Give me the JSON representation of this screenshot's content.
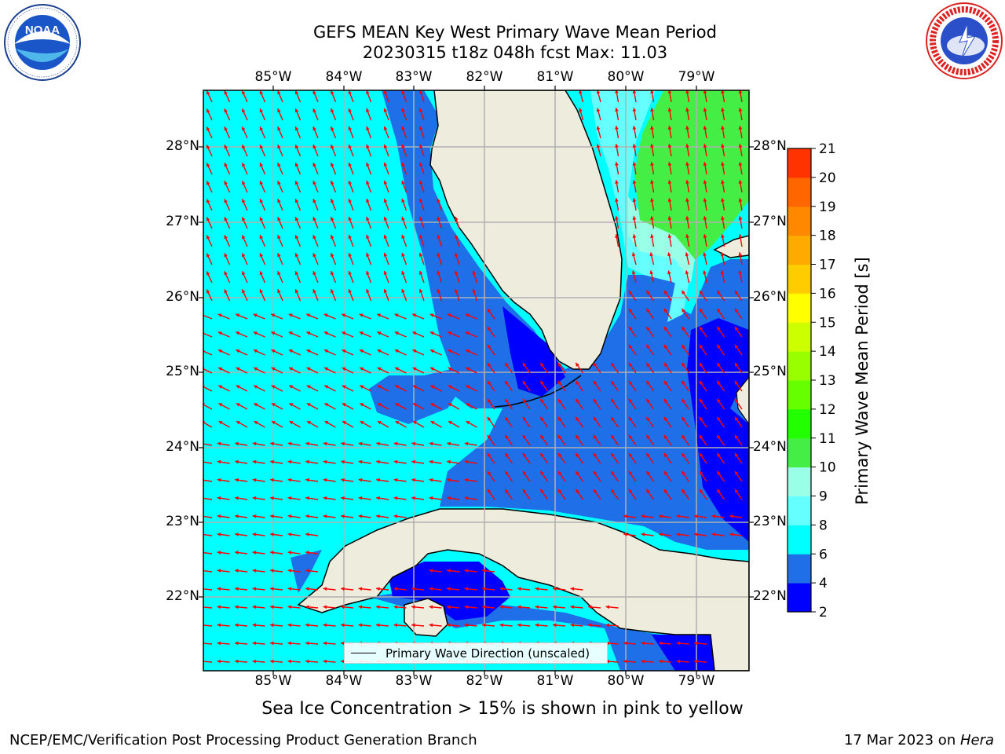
{
  "title_line1": "GEFS MEAN Key West Primary Wave Mean Period",
  "title_line2": "20230315 t18z 048h fcst   Max: 11.03",
  "lon_labels": [
    "85°W",
    "84°W",
    "83°W",
    "82°W",
    "81°W",
    "80°W",
    "79°W"
  ],
  "lat_labels": [
    "28°N",
    "27°N",
    "26°N",
    "25°N",
    "24°N",
    "23°N",
    "22°N"
  ],
  "legend_label": "Primary Wave Direction (unscaled)",
  "colorbar": {
    "label": "Primary Wave Mean Period [s]",
    "ticks": [
      "2",
      "4",
      "6",
      "8",
      "9",
      "10",
      "11",
      "12",
      "13",
      "14",
      "15",
      "16",
      "17",
      "18",
      "19",
      "20",
      "21"
    ],
    "colors": [
      "#0000ff",
      "#1e6fe8",
      "#00ffff",
      "#66ffff",
      "#99ffe6",
      "#44ee44",
      "#22ff00",
      "#66ff00",
      "#99ff00",
      "#ccff00",
      "#ffff00",
      "#ffcc00",
      "#ffaa00",
      "#ff8800",
      "#ff6600",
      "#ff3300",
      "#ff0000"
    ]
  },
  "caption": "Sea Ice Concentration > 15% is shown in pink to yellow",
  "footer_left": "NCEP/EMC/Verification Post Processing Product Generation Branch",
  "footer_right_prefix": "17 Mar 2023 on ",
  "footer_right_host": "Hera",
  "logo_left": {
    "text": "NOAA",
    "ring_text": "NATIONAL OCEANIC AND ATMOSPHERIC ADMINISTRATION · U.S. DEPARTMENT OF COMMERCE"
  },
  "logo_right": {
    "ring_text": "NATIONAL WEATHER SERVICE"
  },
  "map_colors": {
    "land": "#eeecdc",
    "arrow": "#ff0000",
    "grid": "#b0b0b0"
  }
}
